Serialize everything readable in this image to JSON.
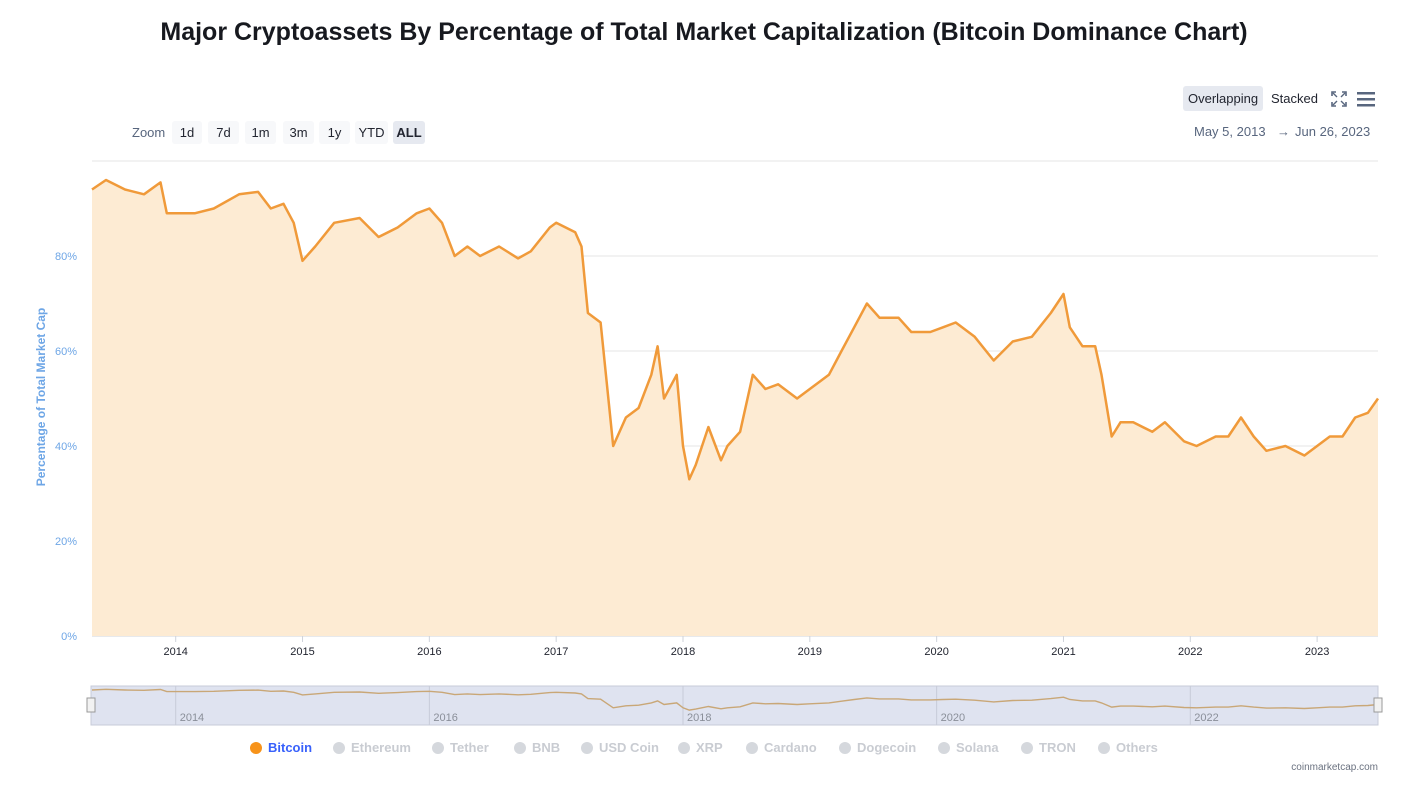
{
  "title": "Major Cryptoassets By Percentage of Total Market Capitalization (Bitcoin Dominance Chart)",
  "toolbar": {
    "zoom_label": "Zoom",
    "zoom_buttons": [
      "1d",
      "7d",
      "1m",
      "3m",
      "1y",
      "YTD",
      "ALL"
    ],
    "active_zoom": "ALL",
    "modes": [
      "Overlapping",
      "Stacked"
    ],
    "active_mode": "Overlapping",
    "icons": [
      "fullscreen-icon",
      "menu-icon"
    ]
  },
  "range": {
    "from": "May 5, 2013",
    "arrow": "→",
    "to": "Jun 26, 2023"
  },
  "credit": "coinmarketcap.com",
  "colors": {
    "bitcoin_line": "#f09a3a",
    "bitcoin_fill": "#fdebd3",
    "axis_text": "#6ea6e6",
    "navigator_bg": "#dfe3f0",
    "legend_active": "#3861fb",
    "legend_dot_active": "#f7931a"
  },
  "chart_data": {
    "type": "area",
    "title": "Major Cryptoassets By Percentage of Total Market Capitalization (Bitcoin Dominance Chart)",
    "ylabel": "Percentage of Total Market Cap",
    "xlabel": "",
    "ylim": [
      0,
      100
    ],
    "xlim": [
      "2013-05-05",
      "2023-06-26"
    ],
    "y_ticks": [
      "0%",
      "20%",
      "40%",
      "60%",
      "80%"
    ],
    "x_ticks": [
      "2014",
      "2015",
      "2016",
      "2017",
      "2018",
      "2019",
      "2020",
      "2021",
      "2022",
      "2023"
    ],
    "navigator_ticks": [
      "2014",
      "2016",
      "2018",
      "2020",
      "2022"
    ],
    "grid": true,
    "legend": [
      "Bitcoin",
      "Ethereum",
      "Tether",
      "BNB",
      "USD Coin",
      "XRP",
      "Cardano",
      "Dogecoin",
      "Solana",
      "TRON",
      "Others"
    ],
    "active_series": "Bitcoin",
    "legend_position": "bottom",
    "series": [
      {
        "name": "Bitcoin",
        "x": [
          2013.34,
          2013.45,
          2013.6,
          2013.75,
          2013.88,
          2013.93,
          2014.0,
          2014.15,
          2014.3,
          2014.5,
          2014.65,
          2014.75,
          2014.85,
          2014.93,
          2015.0,
          2015.1,
          2015.25,
          2015.45,
          2015.6,
          2015.75,
          2015.9,
          2016.0,
          2016.1,
          2016.2,
          2016.3,
          2016.4,
          2016.55,
          2016.7,
          2016.8,
          2016.95,
          2017.0,
          2017.15,
          2017.2,
          2017.25,
          2017.35,
          2017.45,
          2017.55,
          2017.65,
          2017.75,
          2017.8,
          2017.85,
          2017.95,
          2018.0,
          2018.05,
          2018.1,
          2018.2,
          2018.3,
          2018.35,
          2018.45,
          2018.55,
          2018.65,
          2018.75,
          2018.9,
          2019.0,
          2019.15,
          2019.25,
          2019.35,
          2019.45,
          2019.55,
          2019.7,
          2019.8,
          2019.95,
          2020.05,
          2020.15,
          2020.3,
          2020.45,
          2020.6,
          2020.75,
          2020.9,
          2021.0,
          2021.05,
          2021.15,
          2021.25,
          2021.3,
          2021.38,
          2021.45,
          2021.55,
          2021.7,
          2021.8,
          2021.95,
          2022.05,
          2022.2,
          2022.3,
          2022.4,
          2022.5,
          2022.6,
          2022.75,
          2022.9,
          2023.0,
          2023.1,
          2023.2,
          2023.3,
          2023.4,
          2023.48
        ],
        "values": [
          94,
          96,
          94,
          93,
          95.5,
          89,
          89,
          89,
          90,
          93,
          93.5,
          90,
          91,
          87,
          79,
          82,
          87,
          88,
          84,
          86,
          89,
          90,
          87,
          80,
          82,
          80,
          82,
          79.5,
          81,
          86,
          87,
          85,
          82,
          68,
          66,
          40,
          46,
          48,
          55,
          61,
          50,
          55,
          40,
          33,
          36,
          44,
          37,
          40,
          43,
          55,
          52,
          53,
          50,
          52,
          55,
          60,
          65,
          70,
          67,
          67,
          64,
          64,
          65,
          66,
          63,
          58,
          62,
          63,
          68,
          72,
          65,
          61,
          61,
          55,
          42,
          45,
          45,
          43,
          45,
          41,
          40,
          42,
          42,
          46,
          42,
          39,
          40,
          38,
          40,
          42,
          42,
          46,
          47,
          50
        ]
      }
    ]
  }
}
